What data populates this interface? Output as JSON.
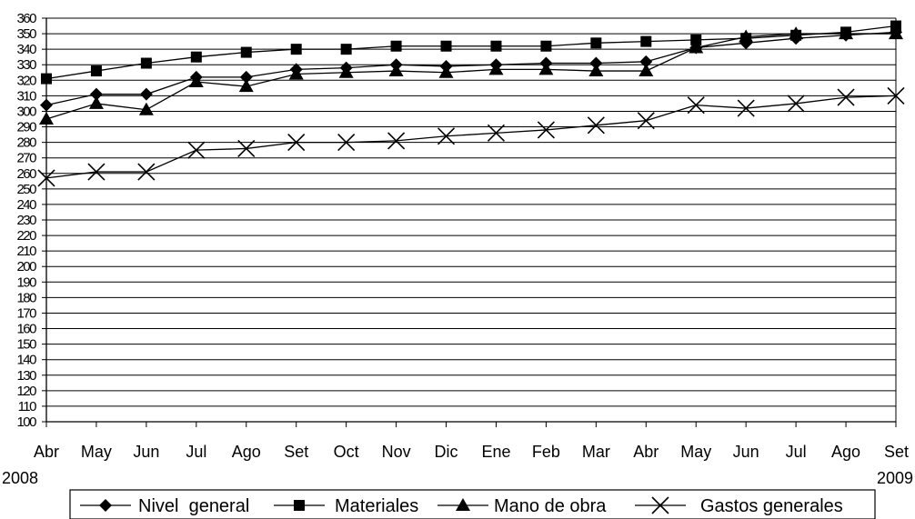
{
  "chart_data": {
    "type": "line",
    "categories": [
      "Abr",
      "May",
      "Jun",
      "Jul",
      "Ago",
      "Set",
      "Oct",
      "Nov",
      "Dic",
      "Ene",
      "Feb",
      "Mar",
      "Abr",
      "May",
      "Jun",
      "Jul",
      "Ago",
      "Set"
    ],
    "year_labels": {
      "start": "2008",
      "end": "2009"
    },
    "ylim": [
      100,
      360
    ],
    "ytick_step": 10,
    "grid": true,
    "legend_position": "bottom",
    "series": [
      {
        "name": "Nivel  general",
        "marker": "diamond",
        "values": [
          304,
          311,
          311,
          322,
          322,
          327,
          328,
          330,
          329,
          330,
          331,
          331,
          332,
          341,
          344,
          347,
          349,
          351
        ]
      },
      {
        "name": "Materiales",
        "marker": "square",
        "values": [
          321,
          326,
          331,
          335,
          338,
          340,
          340,
          342,
          342,
          342,
          342,
          344,
          345,
          346,
          347,
          349,
          351,
          355
        ]
      },
      {
        "name": "Mano de obra",
        "marker": "triangle",
        "values": [
          295,
          305,
          301,
          319,
          316,
          324,
          325,
          326,
          325,
          327,
          327,
          326,
          326,
          341,
          348,
          350,
          350,
          350
        ]
      },
      {
        "name": "Gastos generales",
        "marker": "x",
        "values": [
          257,
          261,
          261,
          275,
          276,
          280,
          280,
          281,
          284,
          286,
          288,
          291,
          294,
          304,
          302,
          305,
          309,
          310
        ]
      }
    ]
  }
}
